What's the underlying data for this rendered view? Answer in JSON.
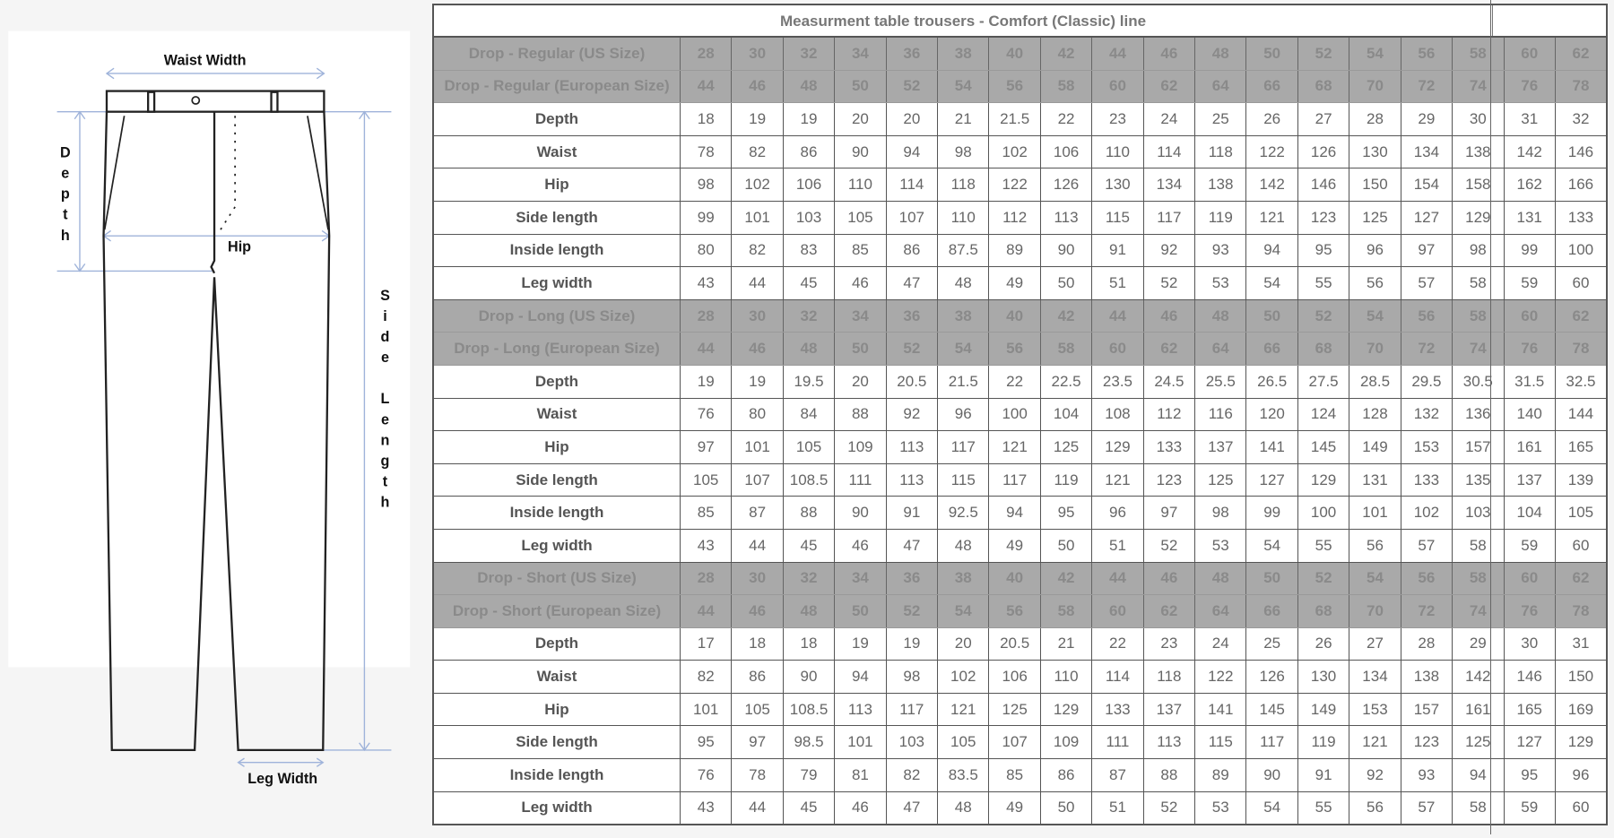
{
  "diagram": {
    "waist_width": "Waist Width",
    "depth": "Depth",
    "hip": "Hip",
    "side_length": "Side Length",
    "leg_width": "Leg Width",
    "measure_line_color": "#9fb3da"
  },
  "table": {
    "title": "Measurment table trousers - Comfort (Classic) line",
    "header_bg": "#a9a9a9",
    "sections": [
      {
        "us_label": "Drop - Regular (US Size)",
        "us_sizes": [
          "28",
          "30",
          "32",
          "34",
          "36",
          "38",
          "40",
          "42",
          "44",
          "46",
          "48",
          "50",
          "52",
          "54",
          "56",
          "58",
          "60",
          "62"
        ],
        "eu_label": "Drop - Regular (European Size)",
        "eu_sizes": [
          "44",
          "46",
          "48",
          "50",
          "52",
          "54",
          "56",
          "58",
          "60",
          "62",
          "64",
          "66",
          "68",
          "70",
          "72",
          "74",
          "76",
          "78"
        ],
        "rows": [
          {
            "label": "Depth",
            "values": [
              "18",
              "19",
              "19",
              "20",
              "20",
              "21",
              "21.5",
              "22",
              "23",
              "24",
              "25",
              "26",
              "27",
              "28",
              "29",
              "30",
              "31",
              "32"
            ]
          },
          {
            "label": "Waist",
            "values": [
              "78",
              "82",
              "86",
              "90",
              "94",
              "98",
              "102",
              "106",
              "110",
              "114",
              "118",
              "122",
              "126",
              "130",
              "134",
              "138",
              "142",
              "146"
            ]
          },
          {
            "label": "Hip",
            "values": [
              "98",
              "102",
              "106",
              "110",
              "114",
              "118",
              "122",
              "126",
              "130",
              "134",
              "138",
              "142",
              "146",
              "150",
              "154",
              "158",
              "162",
              "166"
            ]
          },
          {
            "label": "Side length",
            "values": [
              "99",
              "101",
              "103",
              "105",
              "107",
              "110",
              "112",
              "113",
              "115",
              "117",
              "119",
              "121",
              "123",
              "125",
              "127",
              "129",
              "131",
              "133"
            ]
          },
          {
            "label": "Inside length",
            "values": [
              "80",
              "82",
              "83",
              "85",
              "86",
              "87.5",
              "89",
              "90",
              "91",
              "92",
              "93",
              "94",
              "95",
              "96",
              "97",
              "98",
              "99",
              "100"
            ]
          },
          {
            "label": "Leg width",
            "values": [
              "43",
              "44",
              "45",
              "46",
              "47",
              "48",
              "49",
              "50",
              "51",
              "52",
              "53",
              "54",
              "55",
              "56",
              "57",
              "58",
              "59",
              "60"
            ]
          }
        ]
      },
      {
        "us_label": "Drop - Long (US Size)",
        "us_sizes": [
          "28",
          "30",
          "32",
          "34",
          "36",
          "38",
          "40",
          "42",
          "44",
          "46",
          "48",
          "50",
          "52",
          "54",
          "56",
          "58",
          "60",
          "62"
        ],
        "eu_label": "Drop - Long (European Size)",
        "eu_sizes": [
          "44",
          "46",
          "48",
          "50",
          "52",
          "54",
          "56",
          "58",
          "60",
          "62",
          "64",
          "66",
          "68",
          "70",
          "72",
          "74",
          "76",
          "78"
        ],
        "rows": [
          {
            "label": "Depth",
            "values": [
              "19",
              "19",
              "19.5",
              "20",
              "20.5",
              "21.5",
              "22",
              "22.5",
              "23.5",
              "24.5",
              "25.5",
              "26.5",
              "27.5",
              "28.5",
              "29.5",
              "30.5",
              "31.5",
              "32.5"
            ]
          },
          {
            "label": "Waist",
            "values": [
              "76",
              "80",
              "84",
              "88",
              "92",
              "96",
              "100",
              "104",
              "108",
              "112",
              "116",
              "120",
              "124",
              "128",
              "132",
              "136",
              "140",
              "144"
            ]
          },
          {
            "label": "Hip",
            "values": [
              "97",
              "101",
              "105",
              "109",
              "113",
              "117",
              "121",
              "125",
              "129",
              "133",
              "137",
              "141",
              "145",
              "149",
              "153",
              "157",
              "161",
              "165"
            ]
          },
          {
            "label": "Side length",
            "values": [
              "105",
              "107",
              "108.5",
              "111",
              "113",
              "115",
              "117",
              "119",
              "121",
              "123",
              "125",
              "127",
              "129",
              "131",
              "133",
              "135",
              "137",
              "139"
            ]
          },
          {
            "label": "Inside length",
            "values": [
              "85",
              "87",
              "88",
              "90",
              "91",
              "92.5",
              "94",
              "95",
              "96",
              "97",
              "98",
              "99",
              "100",
              "101",
              "102",
              "103",
              "104",
              "105"
            ]
          },
          {
            "label": "Leg width",
            "values": [
              "43",
              "44",
              "45",
              "46",
              "47",
              "48",
              "49",
              "50",
              "51",
              "52",
              "53",
              "54",
              "55",
              "56",
              "57",
              "58",
              "59",
              "60"
            ]
          }
        ]
      },
      {
        "us_label": "Drop - Short (US Size)",
        "us_sizes": [
          "28",
          "30",
          "32",
          "34",
          "36",
          "38",
          "40",
          "42",
          "44",
          "46",
          "48",
          "50",
          "52",
          "54",
          "56",
          "58",
          "60",
          "62"
        ],
        "eu_label": "Drop - Short (European Size)",
        "eu_sizes": [
          "44",
          "46",
          "48",
          "50",
          "52",
          "54",
          "56",
          "58",
          "60",
          "62",
          "64",
          "66",
          "68",
          "70",
          "72",
          "74",
          "76",
          "78"
        ],
        "rows": [
          {
            "label": "Depth",
            "values": [
              "17",
              "18",
              "18",
              "19",
              "19",
              "20",
              "20.5",
              "21",
              "22",
              "23",
              "24",
              "25",
              "26",
              "27",
              "28",
              "29",
              "30",
              "31"
            ]
          },
          {
            "label": "Waist",
            "values": [
              "82",
              "86",
              "90",
              "94",
              "98",
              "102",
              "106",
              "110",
              "114",
              "118",
              "122",
              "126",
              "130",
              "134",
              "138",
              "142",
              "146",
              "150"
            ]
          },
          {
            "label": "Hip",
            "values": [
              "101",
              "105",
              "108.5",
              "113",
              "117",
              "121",
              "125",
              "129",
              "133",
              "137",
              "141",
              "145",
              "149",
              "153",
              "157",
              "161",
              "165",
              "169"
            ]
          },
          {
            "label": "Side length",
            "values": [
              "95",
              "97",
              "98.5",
              "101",
              "103",
              "105",
              "107",
              "109",
              "111",
              "113",
              "115",
              "117",
              "119",
              "121",
              "123",
              "125",
              "127",
              "129"
            ]
          },
          {
            "label": "Inside length",
            "values": [
              "76",
              "78",
              "79",
              "81",
              "82",
              "83.5",
              "85",
              "86",
              "87",
              "88",
              "89",
              "90",
              "91",
              "92",
              "93",
              "94",
              "95",
              "96"
            ]
          },
          {
            "label": "Leg width",
            "values": [
              "43",
              "44",
              "45",
              "46",
              "47",
              "48",
              "49",
              "50",
              "51",
              "52",
              "53",
              "54",
              "55",
              "56",
              "57",
              "58",
              "59",
              "60"
            ]
          }
        ]
      }
    ]
  }
}
